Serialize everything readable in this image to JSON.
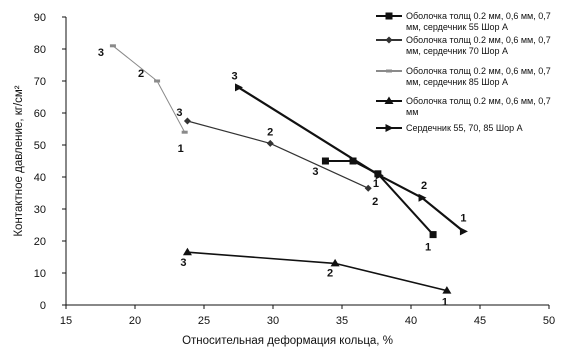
{
  "chart_data": {
    "type": "line",
    "title": "",
    "xlabel": "Относительная деформация кольца, %",
    "ylabel": "Контактное давление, кг/см²",
    "xlim": [
      15,
      50
    ],
    "ylim": [
      0,
      90
    ],
    "xticks": [
      15,
      20,
      25,
      30,
      35,
      40,
      45,
      50
    ],
    "yticks": [
      0,
      10,
      20,
      30,
      40,
      50,
      60,
      70,
      80,
      90
    ],
    "grid": false,
    "legend_position": "top-right",
    "series": [
      {
        "name": "Оболочка толщ 0.2 мм, 0,6 мм, 0,7 мм, сердечник 55 Шор А",
        "marker": "square",
        "color": "#111111",
        "x": [
          33.8,
          35.8,
          37.6,
          41.6
        ],
        "y": [
          45,
          45,
          41,
          22
        ],
        "labels": [
          "3",
          "",
          "1",
          "1"
        ]
      },
      {
        "name": "Оболочка толщ 0.2 мм, 0,6 мм, 0,7 мм, сердечник 70 Шор А",
        "marker": "diamond",
        "color": "#333333",
        "x": [
          23.8,
          29.8,
          36.9
        ],
        "y": [
          57.5,
          50.5,
          36.5
        ],
        "labels": [
          "3",
          "2",
          "2"
        ]
      },
      {
        "name": "Оболочка толщ 0.2 мм, 0,6 мм, 0,7 мм, сердечник 85 Шор А",
        "marker": "dash",
        "color": "#8a8a8a",
        "x": [
          18.4,
          21.6,
          23.6
        ],
        "y": [
          81,
          70,
          54
        ],
        "labels": [
          "3",
          "2",
          "1"
        ]
      },
      {
        "name": "Оболочка толщ 0.2 мм, 0,6 мм, 0,7 мм",
        "marker": "triangle",
        "color": "#111111",
        "x": [
          23.8,
          34.5,
          42.6
        ],
        "y": [
          16.5,
          13,
          4.5
        ],
        "labels": [
          "3",
          "2",
          "1"
        ]
      },
      {
        "name": "Сердечник  55, 70, 85  Шор А",
        "marker": "arrow",
        "color": "#111111",
        "x": [
          27.5,
          37.7,
          40.8,
          43.8
        ],
        "y": [
          68,
          40.5,
          33.5,
          23
        ],
        "labels": [
          "3",
          "",
          "2",
          "1"
        ]
      }
    ]
  }
}
